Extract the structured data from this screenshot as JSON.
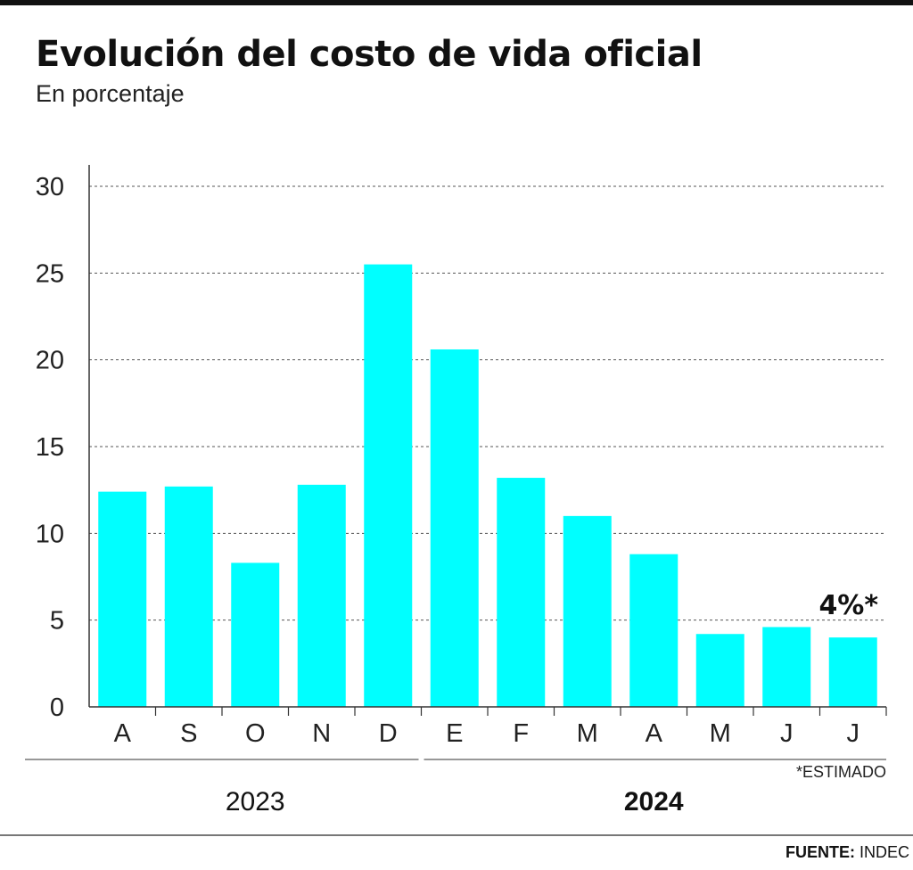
{
  "chart_data": {
    "type": "bar",
    "title": "Evolución del costo de vida oficial",
    "subtitle": "En porcentaje",
    "categories": [
      "A",
      "S",
      "O",
      "N",
      "D",
      "E",
      "F",
      "M",
      "A",
      "M",
      "J",
      "J"
    ],
    "values": [
      12.4,
      12.7,
      8.3,
      12.8,
      25.5,
      20.6,
      13.2,
      11.0,
      8.8,
      4.2,
      4.6,
      4.0
    ],
    "year_groups": [
      {
        "label": "2023",
        "from": 0,
        "to": 4,
        "bold": false
      },
      {
        "label": "2024",
        "from": 5,
        "to": 11,
        "bold": true
      }
    ],
    "ylim": [
      0,
      30
    ],
    "yticks": [
      0,
      5,
      10,
      15,
      20,
      25,
      30
    ],
    "grid": true,
    "bar_color": "#00ffff",
    "annotation": {
      "index": 11,
      "text": "4%*"
    },
    "note": "*ESTIMADO",
    "source_label": "FUENTE:",
    "source_value": "INDEC",
    "xlabel": "",
    "ylabel": ""
  }
}
